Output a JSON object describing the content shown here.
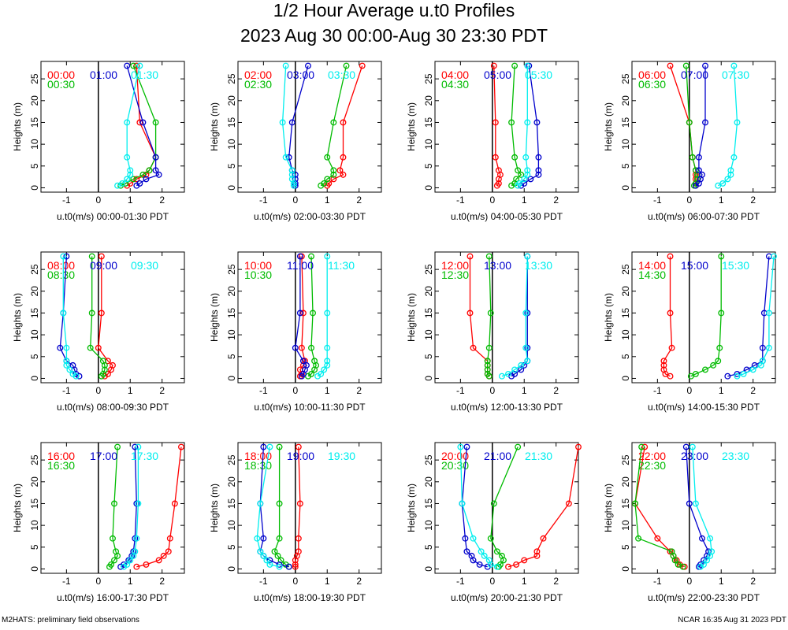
{
  "title": "1/2 Hour Average u.t0 Profiles",
  "subtitle": "2023 Aug 30 00:00-Aug 30 23:30 PDT",
  "footer_left": "M2HATS: preliminary field observations",
  "footer_right": "NCAR 16:35 Aug 31 2023 PDT",
  "colors": {
    "red": "#ff0000",
    "blue": "#0000cc",
    "green": "#00bb00",
    "cyan": "#00eeee"
  },
  "heights": [
    0.5,
    1,
    2,
    3,
    4,
    7,
    15,
    28
  ],
  "chart_data": [
    {
      "type": "line",
      "xlabel": "u.t0(m/s) 00:00-01:30 PDT",
      "ylabel": "Heights (m)",
      "xlim": [
        -1.8,
        2.7
      ],
      "ylim": [
        -1,
        29
      ],
      "xticks": [
        -1,
        0,
        1,
        2
      ],
      "yticks": [
        0,
        5,
        10,
        15,
        20,
        25
      ],
      "series": [
        {
          "name": "00:00",
          "color": "red",
          "values": [
            0.9,
            1.0,
            1.2,
            1.5,
            1.6,
            1.8,
            1.3,
            1.2
          ]
        },
        {
          "name": "00:30",
          "color": "green",
          "values": [
            0.7,
            0.85,
            1.1,
            1.4,
            1.6,
            1.8,
            1.8,
            1.1
          ]
        },
        {
          "name": "01:00",
          "color": "blue",
          "values": [
            1.2,
            1.3,
            1.5,
            1.9,
            1.8,
            1.8,
            1.4,
            0.9
          ]
        },
        {
          "name": "01:30",
          "color": "cyan",
          "values": [
            0.6,
            0.75,
            0.9,
            1.0,
            1.0,
            0.9,
            0.9,
            1.3
          ]
        }
      ]
    },
    {
      "type": "line",
      "xlabel": "u.t0(m/s) 02:00-03:30 PDT",
      "ylabel": "Heights (m)",
      "xlim": [
        -1.8,
        2.7
      ],
      "ylim": [
        -1,
        29
      ],
      "xticks": [
        -1,
        0,
        1,
        2
      ],
      "yticks": [
        0,
        5,
        10,
        15,
        20,
        25
      ],
      "series": [
        {
          "name": "02:00",
          "color": "red",
          "values": [
            1.0,
            1.05,
            1.2,
            1.5,
            1.4,
            1.5,
            1.5,
            2.1
          ]
        },
        {
          "name": "02:30",
          "color": "green",
          "values": [
            0.8,
            0.9,
            1.0,
            1.2,
            1.2,
            1.0,
            1.2,
            1.6
          ]
        },
        {
          "name": "03:00",
          "color": "blue",
          "values": [
            0.0,
            0.0,
            0.0,
            0.0,
            -0.1,
            -0.2,
            -0.1,
            0.4
          ]
        },
        {
          "name": "03:30",
          "color": "cyan",
          "values": [
            -0.05,
            -0.05,
            -0.1,
            -0.1,
            -0.1,
            -0.3,
            -0.4,
            -0.3
          ]
        }
      ]
    },
    {
      "type": "line",
      "xlabel": "u.t0(m/s) 04:00-05:30 PDT",
      "ylabel": "Heights (m)",
      "xlim": [
        -1.8,
        2.7
      ],
      "ylim": [
        -1,
        29
      ],
      "xticks": [
        -1,
        0,
        1,
        2
      ],
      "yticks": [
        0,
        5,
        10,
        15,
        20,
        25
      ],
      "series": [
        {
          "name": "04:00",
          "color": "red",
          "values": [
            0.15,
            0.2,
            0.2,
            0.25,
            0.2,
            0.1,
            0.1,
            0.05
          ]
        },
        {
          "name": "04:30",
          "color": "green",
          "values": [
            0.6,
            0.7,
            0.75,
            0.9,
            0.8,
            0.7,
            0.6,
            0.7
          ]
        },
        {
          "name": "05:00",
          "color": "blue",
          "values": [
            0.9,
            1.0,
            1.2,
            1.45,
            1.45,
            1.45,
            1.4,
            1.15
          ]
        },
        {
          "name": "05:30",
          "color": "cyan",
          "values": [
            0.8,
            0.85,
            1.0,
            1.1,
            1.1,
            1.05,
            1.1,
            1.1
          ]
        }
      ]
    },
    {
      "type": "line",
      "xlabel": "u.t0(m/s) 06:00-07:30 PDT",
      "ylabel": "Heights (m)",
      "xlim": [
        -1.8,
        2.7
      ],
      "ylim": [
        -1,
        29
      ],
      "xticks": [
        -1,
        0,
        1,
        2
      ],
      "yticks": [
        0,
        5,
        10,
        15,
        20,
        25
      ],
      "series": [
        {
          "name": "06:00",
          "color": "red",
          "values": [
            0.2,
            0.2,
            0.2,
            0.2,
            0.2,
            0.1,
            0.0,
            -0.6
          ]
        },
        {
          "name": "06:30",
          "color": "green",
          "values": [
            0.15,
            0.2,
            0.25,
            0.25,
            0.2,
            0.1,
            0.0,
            -0.1
          ]
        },
        {
          "name": "07:00",
          "color": "blue",
          "values": [
            0.2,
            0.3,
            0.35,
            0.4,
            0.3,
            0.3,
            0.5,
            0.5
          ]
        },
        {
          "name": "07:30",
          "color": "cyan",
          "values": [
            0.9,
            1.05,
            1.2,
            1.3,
            1.3,
            1.4,
            1.5,
            1.4
          ]
        }
      ]
    },
    {
      "type": "line",
      "xlabel": "u.t0(m/s) 08:00-09:30 PDT",
      "ylabel": "Heights (m)",
      "xlim": [
        -1.8,
        2.7
      ],
      "ylim": [
        -1,
        29
      ],
      "xticks": [
        -1,
        0,
        1,
        2
      ],
      "yticks": [
        0,
        5,
        10,
        15,
        20,
        25
      ],
      "series": [
        {
          "name": "08:00",
          "color": "red",
          "values": [
            0.2,
            0.3,
            0.4,
            0.45,
            0.3,
            0.0,
            0.1,
            0.1
          ]
        },
        {
          "name": "08:30",
          "color": "green",
          "values": [
            0.1,
            0.15,
            0.2,
            0.2,
            0.15,
            -0.25,
            -0.2,
            -0.2
          ]
        },
        {
          "name": "09:00",
          "color": "blue",
          "values": [
            -0.6,
            -0.7,
            -0.75,
            -0.8,
            -1.0,
            -1.2,
            -1.1,
            -1.0
          ]
        },
        {
          "name": "09:30",
          "color": "cyan",
          "values": [
            -0.7,
            -0.8,
            -0.9,
            -1.0,
            -1.0,
            -1.0,
            -1.1,
            -1.1
          ]
        }
      ]
    },
    {
      "type": "line",
      "xlabel": "u.t0(m/s) 10:00-11:30 PDT",
      "ylabel": "Heights (m)",
      "xlim": [
        -1.8,
        2.7
      ],
      "ylim": [
        -1,
        29
      ],
      "xticks": [
        -1,
        0,
        1,
        2
      ],
      "yticks": [
        0,
        5,
        10,
        15,
        20,
        25
      ],
      "series": [
        {
          "name": "10:00",
          "color": "red",
          "values": [
            0.15,
            0.2,
            0.15,
            0.25,
            0.3,
            0.2,
            0.25,
            0.2
          ]
        },
        {
          "name": "10:30",
          "color": "green",
          "values": [
            0.4,
            0.5,
            0.6,
            0.65,
            0.6,
            0.5,
            0.55,
            0.5
          ]
        },
        {
          "name": "11:00",
          "color": "blue",
          "values": [
            0.2,
            0.25,
            0.3,
            0.35,
            0.25,
            0.0,
            0.15,
            0.15
          ]
        },
        {
          "name": "11:30",
          "color": "cyan",
          "values": [
            0.7,
            0.8,
            0.9,
            1.0,
            1.0,
            1.0,
            1.0,
            1.0
          ]
        }
      ]
    },
    {
      "type": "line",
      "xlabel": "u.t0(m/s) 12:00-13:30 PDT",
      "ylabel": "Heights (m)",
      "xlim": [
        -1.8,
        2.7
      ],
      "ylim": [
        -1,
        29
      ],
      "xticks": [
        -1,
        0,
        1,
        2
      ],
      "yticks": [
        0,
        5,
        10,
        15,
        20,
        25
      ],
      "series": [
        {
          "name": "12:00",
          "color": "red",
          "values": [
            -0.1,
            -0.15,
            -0.15,
            -0.15,
            -0.15,
            -0.6,
            -0.7,
            -0.7
          ]
        },
        {
          "name": "12:30",
          "color": "green",
          "values": [
            -0.1,
            -0.15,
            -0.15,
            -0.15,
            -0.15,
            -0.1,
            -0.05,
            -0.1
          ]
        },
        {
          "name": "13:00",
          "color": "blue",
          "values": [
            0.6,
            0.7,
            0.9,
            1.0,
            1.1,
            1.1,
            1.1,
            1.1
          ]
        },
        {
          "name": "13:30",
          "color": "cyan",
          "values": [
            0.3,
            0.5,
            0.7,
            0.9,
            1.1,
            1.05,
            1.05,
            1.1
          ]
        }
      ]
    },
    {
      "type": "line",
      "xlabel": "u.t0(m/s) 14:00-15:30 PDT",
      "ylabel": "Heights (m)",
      "xlim": [
        -1.8,
        2.7
      ],
      "ylim": [
        -1,
        29
      ],
      "xticks": [
        -1,
        0,
        1,
        2
      ],
      "yticks": [
        0,
        5,
        10,
        15,
        20,
        25
      ],
      "series": [
        {
          "name": "14:00",
          "color": "red",
          "values": [
            -0.6,
            -0.75,
            -0.8,
            -0.8,
            -0.8,
            -0.55,
            -0.6,
            -0.6
          ]
        },
        {
          "name": "14:30",
          "color": "green",
          "values": [
            0.05,
            0.2,
            0.5,
            0.75,
            0.9,
            0.95,
            1.0,
            1.0
          ]
        },
        {
          "name": "15:00",
          "color": "blue",
          "values": [
            1.2,
            1.5,
            1.8,
            2.05,
            2.3,
            2.3,
            2.35,
            2.5
          ]
        },
        {
          "name": "15:30",
          "color": "cyan",
          "values": [
            1.5,
            1.7,
            2.0,
            2.25,
            2.3,
            2.5,
            2.5,
            2.65
          ]
        }
      ]
    },
    {
      "type": "line",
      "xlabel": "u.t0(m/s) 16:00-17:30 PDT",
      "ylabel": "Heights (m)",
      "xlim": [
        -1.8,
        2.7
      ],
      "ylim": [
        -1,
        29
      ],
      "xticks": [
        -1,
        0,
        1,
        2
      ],
      "yticks": [
        0,
        5,
        10,
        15,
        20,
        25
      ],
      "series": [
        {
          "name": "16:00",
          "color": "red",
          "values": [
            1.2,
            1.5,
            1.9,
            2.05,
            2.2,
            2.25,
            2.4,
            2.6
          ]
        },
        {
          "name": "16:30",
          "color": "green",
          "values": [
            0.35,
            0.4,
            0.5,
            0.6,
            0.55,
            0.45,
            0.5,
            0.6
          ]
        },
        {
          "name": "17:00",
          "color": "blue",
          "values": [
            0.7,
            0.8,
            0.95,
            1.05,
            1.1,
            1.15,
            1.2,
            1.15
          ]
        },
        {
          "name": "17:30",
          "color": "cyan",
          "values": [
            0.8,
            0.9,
            1.0,
            1.1,
            1.15,
            1.2,
            1.25,
            1.25
          ]
        }
      ]
    },
    {
      "type": "line",
      "xlabel": "u.t0(m/s) 18:00-19:30 PDT",
      "ylabel": "Heights (m)",
      "xlim": [
        -1.8,
        2.7
      ],
      "ylim": [
        -1,
        29
      ],
      "xticks": [
        -1,
        0,
        1,
        2
      ],
      "yticks": [
        0,
        5,
        10,
        15,
        20,
        25
      ],
      "series": [
        {
          "name": "18:00",
          "color": "red",
          "values": [
            0.0,
            0.0,
            0.0,
            0.05,
            0.1,
            0.1,
            0.15,
            0.1
          ]
        },
        {
          "name": "18:30",
          "color": "green",
          "values": [
            -0.2,
            -0.3,
            -0.45,
            -0.55,
            -0.65,
            -0.5,
            -0.5,
            -0.5
          ]
        },
        {
          "name": "19:00",
          "color": "blue",
          "values": [
            -0.2,
            -0.5,
            -0.8,
            -1.0,
            -1.1,
            -1.0,
            -1.1,
            -1.0
          ]
        },
        {
          "name": "19:30",
          "color": "cyan",
          "values": [
            -0.5,
            -0.8,
            -0.9,
            -1.0,
            -1.1,
            -1.2,
            -1.1,
            -0.8
          ]
        }
      ]
    },
    {
      "type": "line",
      "xlabel": "u.t0(m/s) 20:00-21:30 PDT",
      "ylabel": "Heights (m)",
      "xlim": [
        -1.8,
        2.7
      ],
      "ylim": [
        -1,
        29
      ],
      "xticks": [
        -1,
        0,
        1,
        2
      ],
      "yticks": [
        0,
        5,
        10,
        15,
        20,
        25
      ],
      "series": [
        {
          "name": "20:00",
          "color": "red",
          "values": [
            0.5,
            0.75,
            1.0,
            1.4,
            1.4,
            1.6,
            2.4,
            2.7
          ]
        },
        {
          "name": "20:30",
          "color": "green",
          "values": [
            0.2,
            0.25,
            0.35,
            0.3,
            0.15,
            -0.05,
            0.05,
            0.8
          ]
        },
        {
          "name": "21:00",
          "color": "blue",
          "values": [
            -0.15,
            -0.4,
            -0.6,
            -0.65,
            -0.8,
            -0.85,
            -0.95,
            -0.8
          ]
        },
        {
          "name": "21:30",
          "color": "cyan",
          "values": [
            0.15,
            -0.05,
            -0.1,
            -0.25,
            -0.35,
            -0.6,
            -0.95,
            -1.0
          ]
        }
      ]
    },
    {
      "type": "line",
      "xlabel": "u.t0(m/s) 22:00-23:30 PDT",
      "ylabel": "Heights (m)",
      "xlim": [
        -1.8,
        2.7
      ],
      "ylim": [
        -1,
        29
      ],
      "xticks": [
        -1,
        0,
        1,
        2
      ],
      "yticks": [
        0,
        5,
        10,
        15,
        20,
        25
      ],
      "series": [
        {
          "name": "22:00",
          "color": "red",
          "values": [
            -0.15,
            -0.3,
            -0.4,
            -0.5,
            -0.6,
            -1.0,
            -1.7,
            -1.4
          ]
        },
        {
          "name": "22:30",
          "color": "green",
          "values": [
            -0.2,
            -0.35,
            -0.45,
            -0.5,
            -0.55,
            -1.6,
            -1.7,
            -1.5
          ]
        },
        {
          "name": "23:00",
          "color": "blue",
          "values": [
            0.3,
            0.35,
            0.45,
            0.55,
            0.6,
            0.4,
            0.0,
            -0.1
          ]
        },
        {
          "name": "23:30",
          "color": "cyan",
          "values": [
            0.35,
            0.45,
            0.55,
            0.65,
            0.7,
            0.65,
            0.2,
            0.1
          ]
        }
      ]
    }
  ]
}
